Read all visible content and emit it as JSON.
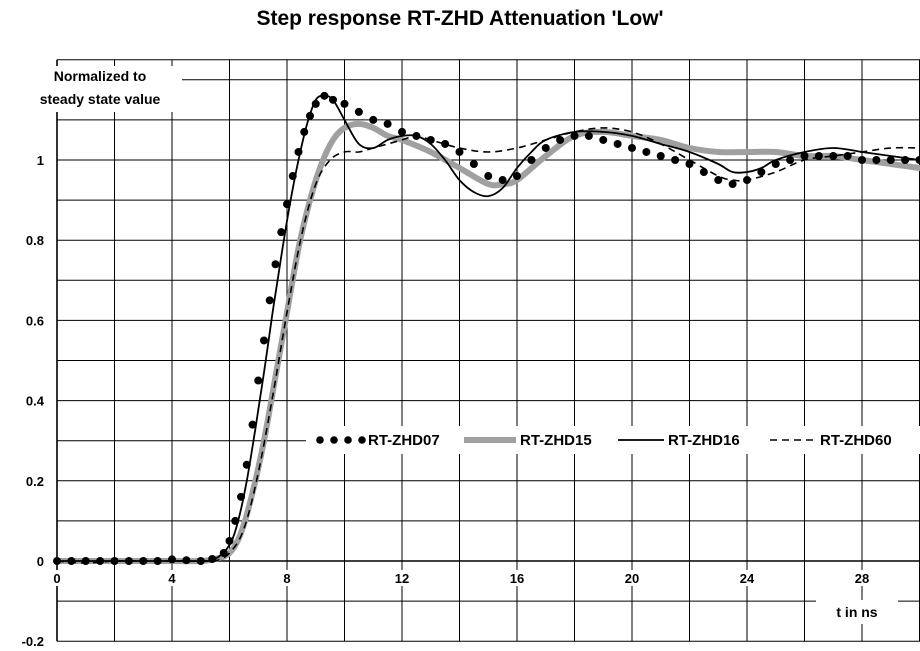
{
  "chart_data": {
    "type": "line",
    "title": "Step response RT-ZHD Attenuation  'Low'",
    "ylabel_line1": "Normalized to",
    "ylabel_line2": "steady state value",
    "xlabel": "t in ns",
    "xlim": [
      0,
      30
    ],
    "ylim": [
      -0.2,
      1.25
    ],
    "x_ticks": [
      {
        "value": 0,
        "label": "0"
      },
      {
        "value": 4,
        "label": "4"
      },
      {
        "value": 8,
        "label": "8"
      },
      {
        "value": 12,
        "label": "12"
      },
      {
        "value": 16,
        "label": "16"
      },
      {
        "value": 20,
        "label": "20"
      },
      {
        "value": 24,
        "label": "24"
      },
      {
        "value": 28,
        "label": "28"
      }
    ],
    "y_ticks": [
      {
        "value": -0.2,
        "label": "-0.2"
      },
      {
        "value": 0,
        "label": "0"
      },
      {
        "value": 0.2,
        "label": "0.2"
      },
      {
        "value": 0.4,
        "label": "0.4"
      },
      {
        "value": 0.6,
        "label": "0.6"
      },
      {
        "value": 0.8,
        "label": "0.8"
      },
      {
        "value": 1,
        "label": "1"
      }
    ],
    "grid": true,
    "legend_position": "center-right",
    "series": [
      {
        "name": "RT-ZHD07",
        "style": "dotted",
        "color": "#000000",
        "points": [
          [
            0,
            0
          ],
          [
            0.5,
            0
          ],
          [
            1,
            0
          ],
          [
            1.5,
            0
          ],
          [
            2,
            0
          ],
          [
            2.5,
            0
          ],
          [
            3,
            0
          ],
          [
            3.5,
            0
          ],
          [
            4,
            0.004
          ],
          [
            4.5,
            0.002
          ],
          [
            5,
            0
          ],
          [
            5.4,
            0.005
          ],
          [
            5.8,
            0.02
          ],
          [
            6,
            0.05
          ],
          [
            6.2,
            0.1
          ],
          [
            6.4,
            0.16
          ],
          [
            6.6,
            0.24
          ],
          [
            6.8,
            0.34
          ],
          [
            7,
            0.45
          ],
          [
            7.2,
            0.55
          ],
          [
            7.4,
            0.65
          ],
          [
            7.6,
            0.74
          ],
          [
            7.8,
            0.82
          ],
          [
            8,
            0.89
          ],
          [
            8.2,
            0.96
          ],
          [
            8.4,
            1.02
          ],
          [
            8.6,
            1.07
          ],
          [
            8.8,
            1.11
          ],
          [
            9,
            1.14
          ],
          [
            9.3,
            1.16
          ],
          [
            9.6,
            1.15
          ],
          [
            10,
            1.14
          ],
          [
            10.5,
            1.12
          ],
          [
            11,
            1.1
          ],
          [
            11.5,
            1.09
          ],
          [
            12,
            1.07
          ],
          [
            12.5,
            1.06
          ],
          [
            13,
            1.05
          ],
          [
            13.5,
            1.04
          ],
          [
            14,
            1.02
          ],
          [
            14.5,
            0.99
          ],
          [
            15,
            0.96
          ],
          [
            15.5,
            0.95
          ],
          [
            16,
            0.96
          ],
          [
            16.5,
            1
          ],
          [
            17,
            1.03
          ],
          [
            17.5,
            1.05
          ],
          [
            18,
            1.06
          ],
          [
            18.5,
            1.06
          ],
          [
            19,
            1.05
          ],
          [
            19.5,
            1.04
          ],
          [
            20,
            1.03
          ],
          [
            20.5,
            1.02
          ],
          [
            21,
            1.01
          ],
          [
            21.5,
            1
          ],
          [
            22,
            0.99
          ],
          [
            22.5,
            0.97
          ],
          [
            23,
            0.95
          ],
          [
            23.5,
            0.94
          ],
          [
            24,
            0.95
          ],
          [
            24.5,
            0.97
          ],
          [
            25,
            0.99
          ],
          [
            25.5,
            1
          ],
          [
            26,
            1.01
          ],
          [
            26.5,
            1.01
          ],
          [
            27,
            1.01
          ],
          [
            27.5,
            1.01
          ],
          [
            28,
            1
          ],
          [
            28.5,
            1
          ],
          [
            29,
            1
          ],
          [
            29.5,
            1
          ],
          [
            30,
            1
          ]
        ]
      },
      {
        "name": "RT-ZHD15",
        "style": "thick-gray",
        "color": "#a0a0a0",
        "points": [
          [
            0,
            0
          ],
          [
            1,
            0
          ],
          [
            2,
            0
          ],
          [
            3,
            0
          ],
          [
            4,
            0
          ],
          [
            5,
            0
          ],
          [
            5.5,
            0.005
          ],
          [
            6,
            0.02
          ],
          [
            6.4,
            0.07
          ],
          [
            6.8,
            0.17
          ],
          [
            7.2,
            0.3
          ],
          [
            7.6,
            0.46
          ],
          [
            8,
            0.62
          ],
          [
            8.4,
            0.78
          ],
          [
            8.8,
            0.9
          ],
          [
            9.2,
            0.99
          ],
          [
            9.6,
            1.05
          ],
          [
            10,
            1.08
          ],
          [
            10.5,
            1.09
          ],
          [
            11,
            1.08
          ],
          [
            11.5,
            1.06
          ],
          [
            12,
            1.05
          ],
          [
            13,
            1.02
          ],
          [
            14,
            0.98
          ],
          [
            15,
            0.94
          ],
          [
            15.5,
            0.94
          ],
          [
            16,
            0.95
          ],
          [
            17,
            1.01
          ],
          [
            18,
            1.06
          ],
          [
            19,
            1.07
          ],
          [
            20,
            1.06
          ],
          [
            21,
            1.05
          ],
          [
            22,
            1.03
          ],
          [
            23,
            1.02
          ],
          [
            24,
            1.02
          ],
          [
            25,
            1.02
          ],
          [
            26,
            1.01
          ],
          [
            27,
            1.01
          ],
          [
            28,
            1
          ],
          [
            29,
            0.99
          ],
          [
            30,
            0.98
          ]
        ]
      },
      {
        "name": "RT-ZHD16",
        "style": "solid",
        "color": "#000000",
        "points": [
          [
            0,
            0
          ],
          [
            1,
            0
          ],
          [
            2,
            0
          ],
          [
            3,
            0
          ],
          [
            4,
            0
          ],
          [
            5,
            0
          ],
          [
            5.5,
            0.005
          ],
          [
            6,
            0.04
          ],
          [
            6.3,
            0.1
          ],
          [
            6.6,
            0.2
          ],
          [
            6.9,
            0.33
          ],
          [
            7.2,
            0.47
          ],
          [
            7.5,
            0.62
          ],
          [
            7.8,
            0.76
          ],
          [
            8.1,
            0.89
          ],
          [
            8.4,
            1
          ],
          [
            8.7,
            1.09
          ],
          [
            9,
            1.15
          ],
          [
            9.3,
            1.16
          ],
          [
            9.6,
            1.15
          ],
          [
            10,
            1.1
          ],
          [
            10.5,
            1.04
          ],
          [
            11,
            1.03
          ],
          [
            11.5,
            1.05
          ],
          [
            12,
            1.06
          ],
          [
            12.5,
            1.06
          ],
          [
            13,
            1.04
          ],
          [
            13.5,
            1
          ],
          [
            14,
            0.95
          ],
          [
            14.5,
            0.92
          ],
          [
            15,
            0.91
          ],
          [
            15.5,
            0.93
          ],
          [
            16,
            0.98
          ],
          [
            16.5,
            1.02
          ],
          [
            17,
            1.05
          ],
          [
            18,
            1.07
          ],
          [
            19,
            1.07
          ],
          [
            20,
            1.06
          ],
          [
            21,
            1.04
          ],
          [
            22,
            1.02
          ],
          [
            23,
            0.99
          ],
          [
            23.5,
            0.97
          ],
          [
            24,
            0.97
          ],
          [
            24.5,
            0.98
          ],
          [
            25,
            1
          ],
          [
            26,
            1.02
          ],
          [
            27,
            1.03
          ],
          [
            28,
            1.02
          ],
          [
            29,
            1.01
          ],
          [
            30,
            1
          ]
        ]
      },
      {
        "name": "RT-ZHD60",
        "style": "dashed",
        "color": "#000000",
        "points": [
          [
            0,
            0
          ],
          [
            1,
            -0.005
          ],
          [
            2,
            0
          ],
          [
            3,
            0
          ],
          [
            4,
            0
          ],
          [
            5,
            0
          ],
          [
            5.5,
            0
          ],
          [
            6,
            0.02
          ],
          [
            6.5,
            0.08
          ],
          [
            7,
            0.22
          ],
          [
            7.5,
            0.41
          ],
          [
            8,
            0.62
          ],
          [
            8.5,
            0.81
          ],
          [
            9,
            0.94
          ],
          [
            9.5,
            1
          ],
          [
            10,
            1.02
          ],
          [
            10.5,
            1.02
          ],
          [
            11,
            1.03
          ],
          [
            11.5,
            1.04
          ],
          [
            12,
            1.05
          ],
          [
            12.5,
            1.06
          ],
          [
            13,
            1.05
          ],
          [
            14,
            1.03
          ],
          [
            15,
            1.02
          ],
          [
            16,
            1.03
          ],
          [
            17,
            1.05
          ],
          [
            18,
            1.07
          ],
          [
            19,
            1.08
          ],
          [
            20,
            1.07
          ],
          [
            21,
            1.04
          ],
          [
            22,
            1
          ],
          [
            23,
            0.96
          ],
          [
            23.5,
            0.95
          ],
          [
            24,
            0.95
          ],
          [
            25,
            0.97
          ],
          [
            26,
            1
          ],
          [
            27,
            1.01
          ],
          [
            28,
            1.02
          ],
          [
            29,
            1.03
          ],
          [
            30,
            1.03
          ]
        ]
      }
    ]
  }
}
